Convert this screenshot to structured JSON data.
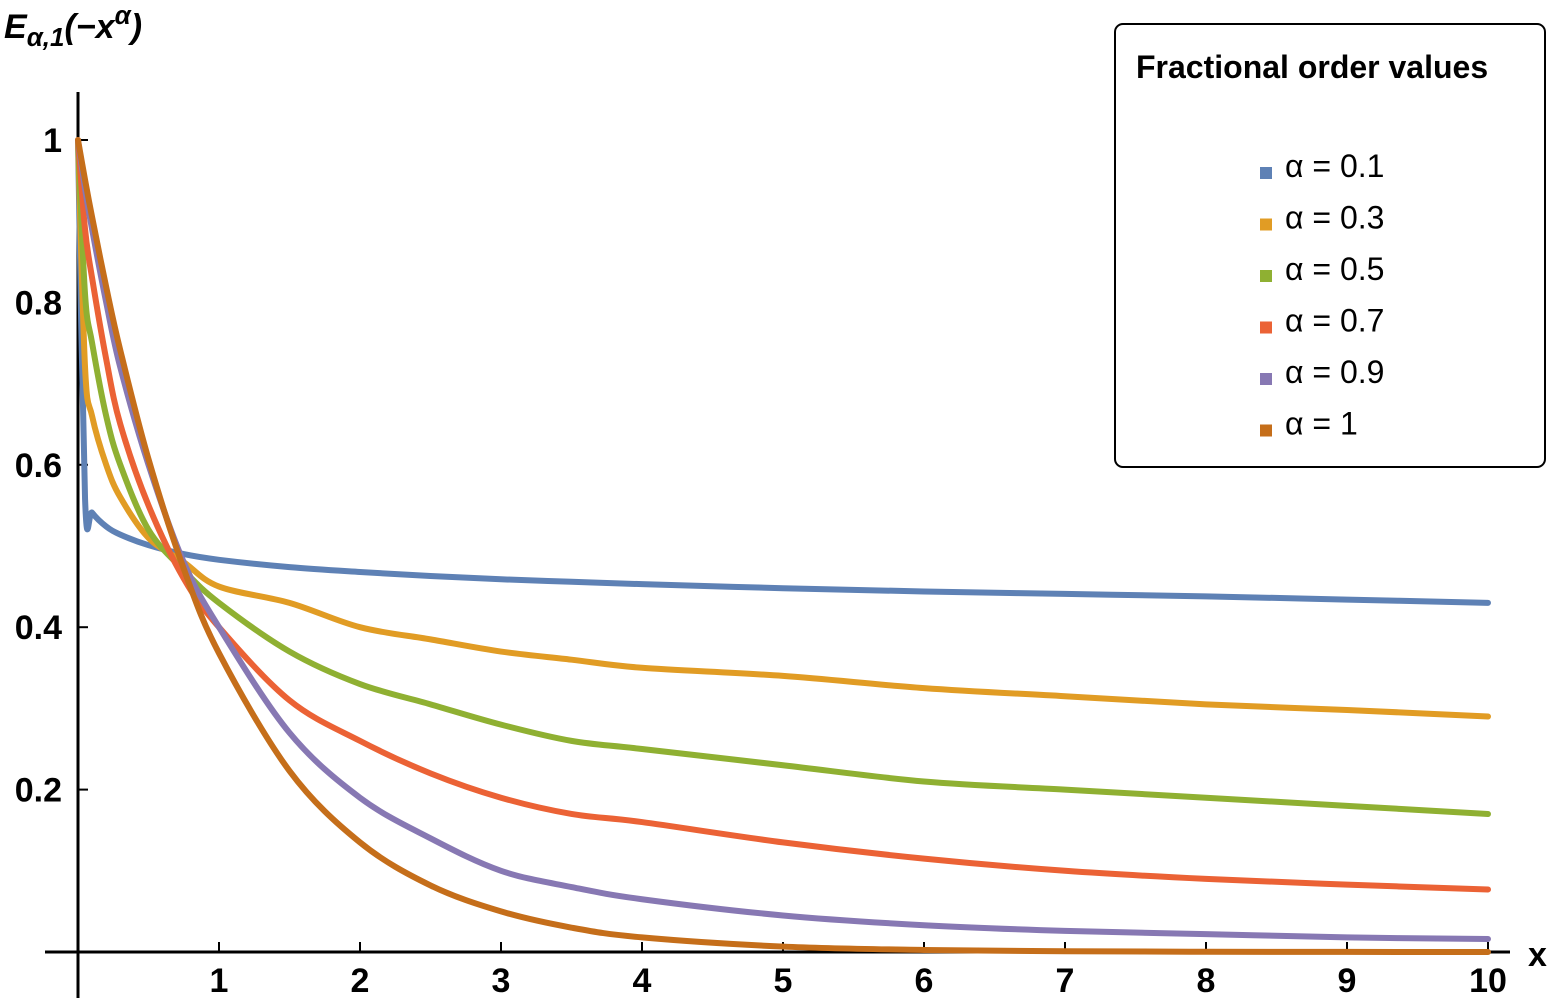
{
  "chart_data": {
    "type": "line",
    "y_axis_label": "Eα,1(−xα)",
    "x_axis_label": "x",
    "xlim": [
      0,
      10
    ],
    "ylim": [
      0,
      1
    ],
    "x_ticks": [
      "1",
      "2",
      "3",
      "4",
      "5",
      "6",
      "7",
      "8",
      "9",
      "10"
    ],
    "y_ticks": [
      "0.2",
      "0.4",
      "0.6",
      "0.8",
      "1"
    ],
    "x_tick_values": [
      1,
      2,
      3,
      4,
      5,
      6,
      7,
      8,
      9,
      10
    ],
    "y_tick_values": [
      0.2,
      0.4,
      0.6,
      0.8,
      1
    ],
    "grid": false,
    "legend": {
      "title": "Fractional order values",
      "placement": "top-right"
    },
    "x": [
      0,
      0.05,
      0.1,
      0.2,
      0.3,
      0.5,
      0.75,
      1,
      1.5,
      2,
      2.5,
      3,
      3.5,
      4,
      5,
      6,
      7,
      8,
      9,
      10
    ],
    "series": [
      {
        "name": "α = 0.1",
        "color": "#5E81B5",
        "values": [
          1.0,
          0.558,
          0.541,
          0.524,
          0.514,
          0.501,
          0.49,
          0.483,
          0.474,
          0.468,
          0.463,
          0.459,
          0.456,
          0.453,
          0.448,
          0.444,
          0.441,
          0.438,
          0.434,
          0.43
        ]
      },
      {
        "name": "α = 0.3",
        "color": "#E19C24",
        "values": [
          1.0,
          0.72,
          0.66,
          0.6,
          0.56,
          0.51,
          0.48,
          0.45,
          0.43,
          0.4,
          0.385,
          0.37,
          0.36,
          0.35,
          0.34,
          0.325,
          0.315,
          0.305,
          0.298,
          0.29
        ]
      },
      {
        "name": "α = 0.5",
        "color": "#8FB032",
        "values": [
          1.0,
          0.81,
          0.75,
          0.66,
          0.6,
          0.52,
          0.47,
          0.43,
          0.37,
          0.33,
          0.305,
          0.28,
          0.26,
          0.25,
          0.23,
          0.21,
          0.2,
          0.19,
          0.18,
          0.17
        ]
      },
      {
        "name": "α = 0.7",
        "color": "#EB6235",
        "values": [
          1.0,
          0.89,
          0.83,
          0.73,
          0.65,
          0.55,
          0.46,
          0.4,
          0.31,
          0.26,
          0.22,
          0.19,
          0.17,
          0.16,
          0.135,
          0.115,
          0.1,
          0.09,
          0.083,
          0.077
        ]
      },
      {
        "name": "α = 0.9",
        "color": "#8778B3",
        "values": [
          1.0,
          0.94,
          0.89,
          0.8,
          0.72,
          0.6,
          0.48,
          0.4,
          0.27,
          0.19,
          0.14,
          0.1,
          0.08,
          0.065,
          0.045,
          0.033,
          0.026,
          0.022,
          0.018,
          0.016
        ]
      },
      {
        "name": "α = 1",
        "color": "#C56E1A",
        "values": [
          1.0,
          0.951,
          0.905,
          0.819,
          0.741,
          0.607,
          0.472,
          0.368,
          0.223,
          0.135,
          0.082,
          0.05,
          0.03,
          0.018,
          0.0067,
          0.0025,
          0.0009,
          0.0003,
          0.0001,
          5e-05
        ]
      }
    ]
  }
}
